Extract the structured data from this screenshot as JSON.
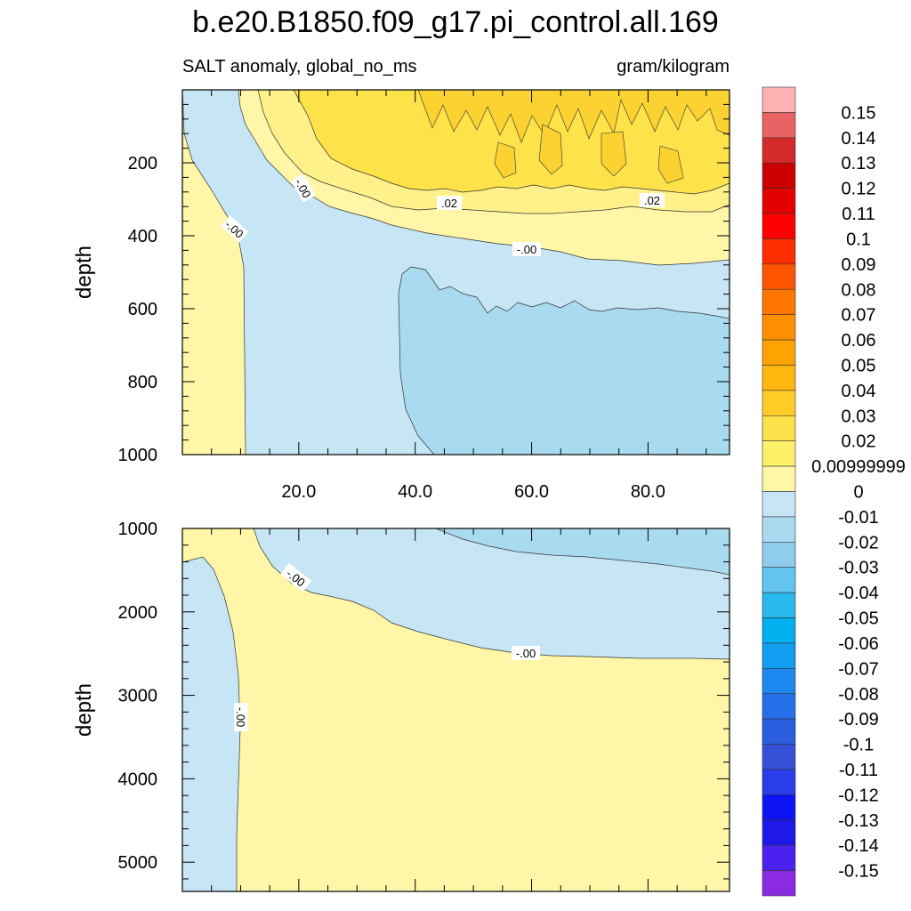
{
  "title": "b.e20.B1850.f09_g17.pi_control.all.169",
  "subtitle_left": "SALT anomaly, global_no_ms",
  "subtitle_right": "gram/kilogram",
  "chart_data": [
    {
      "type": "heatmap",
      "panel": "upper",
      "xlabel": "",
      "ylabel": "depth",
      "xlim": [
        0,
        94
      ],
      "ylim": [
        1000,
        0
      ],
      "x_ticks": [
        20,
        40,
        60,
        80
      ],
      "x_tick_labels": [
        "20.0",
        "40.0",
        "60.0",
        "80.0"
      ],
      "y_ticks": [
        200,
        400,
        600,
        800,
        1000
      ],
      "y_tick_labels": [
        "200",
        "400",
        "600",
        "800",
        "1000"
      ],
      "contour_labels": [
        "-.00",
        "-.00",
        ".02",
        ".02",
        "-.00"
      ],
      "regions": [
        {
          "level": "0 to 0.01",
          "color": "#fff6a8"
        },
        {
          "level": "0.01 to 0.02",
          "color": "#fff18a"
        },
        {
          "level": "0.02 to 0.03",
          "color": "#fde24a"
        },
        {
          "level": "0.03 to 0.04",
          "color": "#fcd232"
        },
        {
          "level": "-0.01 to 0",
          "color": "#c6e6f5"
        },
        {
          "level": "-0.02 to -0.01",
          "color": "#a8daf0"
        }
      ]
    },
    {
      "type": "heatmap",
      "panel": "lower",
      "xlabel": "",
      "ylabel": "depth",
      "xlim": [
        0,
        94
      ],
      "ylim": [
        5350,
        1000
      ],
      "y_ticks": [
        1000,
        2000,
        3000,
        4000,
        5000
      ],
      "y_tick_labels": [
        "1000",
        "2000",
        "3000",
        "4000",
        "5000"
      ],
      "contour_labels": [
        "-.00",
        "-.00",
        "-.00"
      ],
      "regions": [
        {
          "level": "0 to 0.01",
          "color": "#fff6a8"
        },
        {
          "level": "-0.01 to 0",
          "color": "#c6e6f5"
        },
        {
          "level": "-0.02 to -0.01",
          "color": "#a8daf0"
        }
      ]
    }
  ],
  "colorbar": {
    "labels": [
      "0.15",
      "0.14",
      "0.13",
      "0.12",
      "0.11",
      "0.1",
      "0.09",
      "0.08",
      "0.07",
      "0.06",
      "0.05",
      "0.04",
      "0.03",
      "0.02",
      "0.00999999",
      "0",
      "-0.01",
      "-0.02",
      "-0.03",
      "-0.04",
      "-0.05",
      "-0.06",
      "-0.07",
      "-0.08",
      "-0.09",
      "-0.1",
      "-0.11",
      "-0.12",
      "-0.13",
      "-0.14",
      "-0.15"
    ],
    "colors": [
      "#fdb1b2",
      "#e86464",
      "#d42a2a",
      "#cc0000",
      "#e50000",
      "#ff0000",
      "#ff2d00",
      "#ff5500",
      "#ff7700",
      "#ff8f00",
      "#ffa300",
      "#ffb60f",
      "#ffcc28",
      "#fde14a",
      "#fff06a",
      "#fff6a8",
      "#c6e6f5",
      "#a8daf0",
      "#8fcdef",
      "#62c4ef",
      "#29b8ee",
      "#00b0ef",
      "#119df0",
      "#1d89f0",
      "#2570e8",
      "#2b5fe0",
      "#3650d8",
      "#2b3cea",
      "#0d14f5",
      "#1e19e8",
      "#4a21ee",
      "#8a2be2"
    ]
  }
}
